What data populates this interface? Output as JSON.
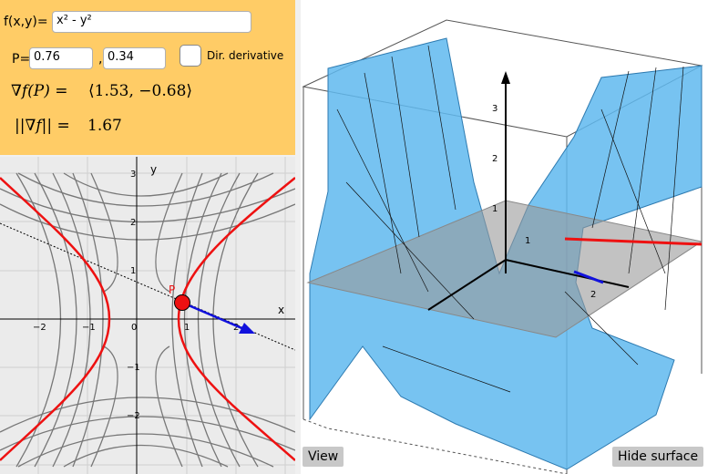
{
  "panel": {
    "function_label": "f(x,y)=",
    "function_value": "x² - y²",
    "point_label": "P=",
    "px_value": "0.76",
    "comma": ",",
    "py_value": "0.34",
    "dir_derivative_label": "Dir. derivative",
    "gradient_lhs": "∇f(P) =",
    "gradient_value": "⟨1.53, −0.68⟩",
    "norm_lhs": "||∇f|| =",
    "norm_value": "1.67"
  },
  "graph2d": {
    "x_axis_label": "x",
    "y_axis_label": "y",
    "point_label": "P",
    "x_ticks": [
      "−2",
      "−1",
      "0",
      "1",
      "2"
    ],
    "y_ticks": [
      "3",
      "2",
      "1",
      "−1",
      "−2"
    ],
    "colors": {
      "level_curve": "#ee1111",
      "gradient": "#1111dd",
      "point": "#ee1111",
      "contours": "#777777"
    }
  },
  "graph3d": {
    "z_ticks": [
      "1",
      "2",
      "3"
    ],
    "x_tick": "1",
    "y_tick": "2",
    "view_button": "View",
    "hide_surface_button": "Hide surface",
    "colors": {
      "surface": "#5fb9ee",
      "plane": "#9a9a9a"
    }
  }
}
